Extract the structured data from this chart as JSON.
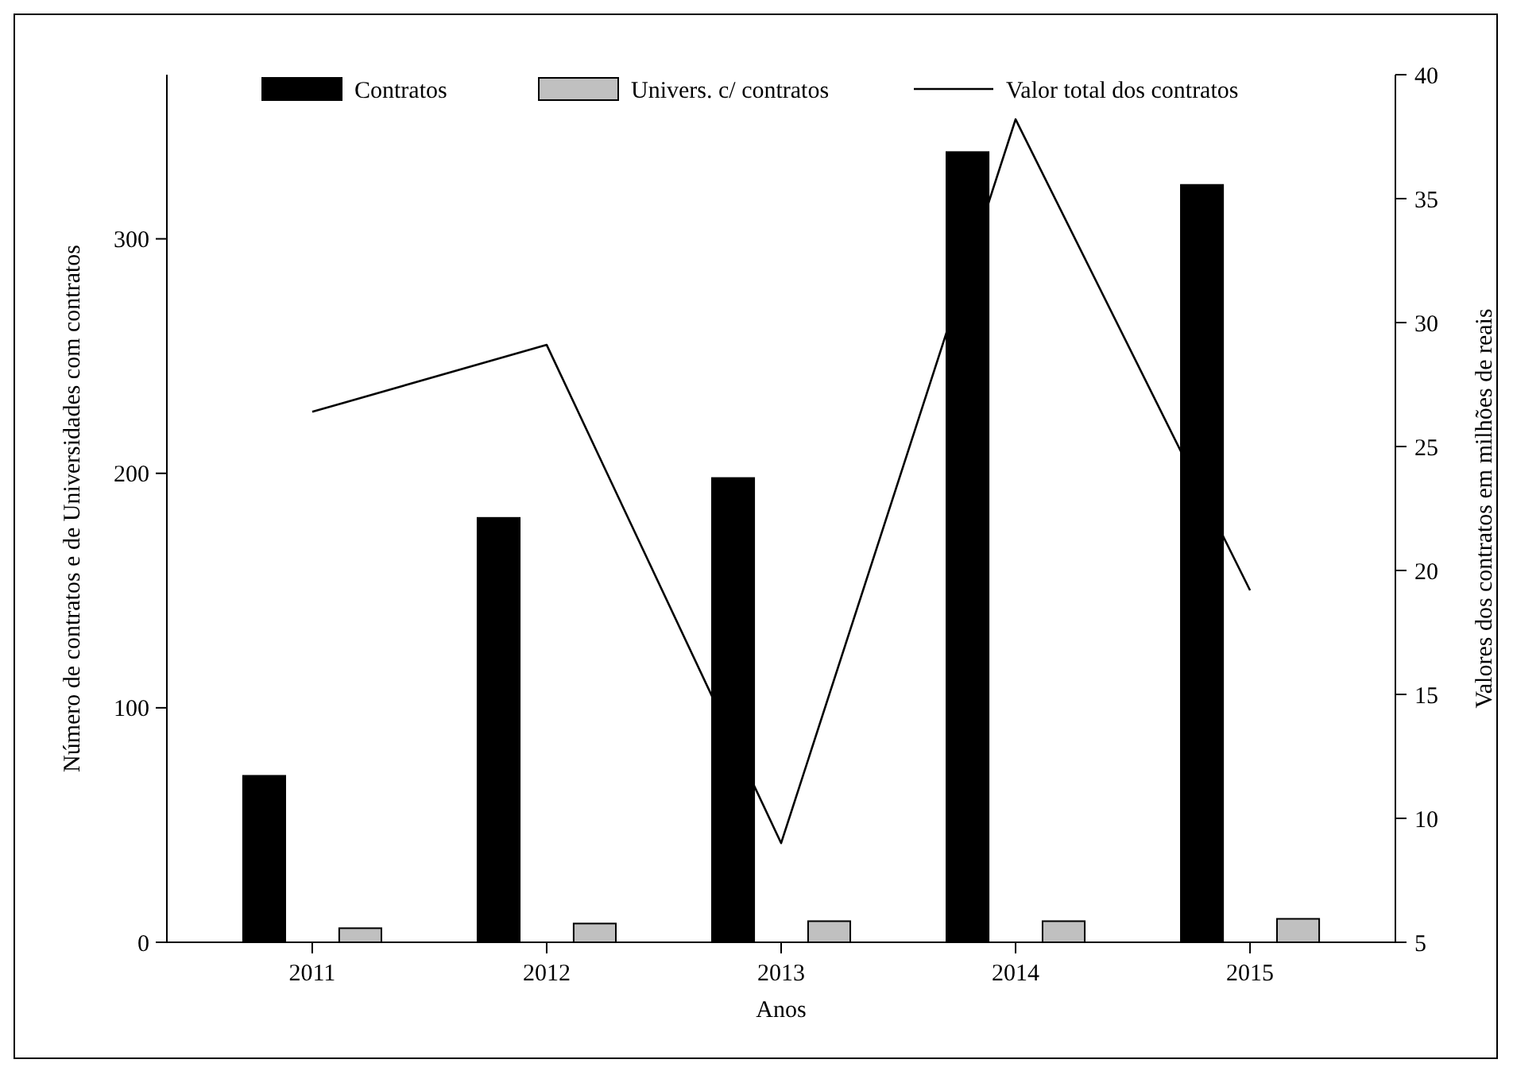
{
  "chart_data": {
    "type": "bar",
    "xlabel": "Anos",
    "ylabel": "Número de contratos e de Universidades com contratos",
    "y2label": "Valores dos contratos em milhões de reais",
    "categories": [
      "2011",
      "2012",
      "2013",
      "2014",
      "2015"
    ],
    "series": [
      {
        "name": "Contratos",
        "color": "#000000",
        "values": [
          71,
          181,
          198,
          337,
          323
        ]
      },
      {
        "name": "Univers. c/ contratos",
        "color": "#c0c0c0",
        "values": [
          6,
          8,
          9,
          9,
          10
        ]
      },
      {
        "name": "Valor total dos contratos",
        "type": "line",
        "axis": "y2",
        "color": "#000000",
        "values": [
          26.4,
          29.1,
          9.0,
          38.2,
          19.2
        ]
      }
    ],
    "ylim": [
      0,
      370
    ],
    "yticks": [
      0,
      100,
      200,
      300
    ],
    "y2lim": [
      5,
      40
    ],
    "y2ticks": [
      5,
      10,
      15,
      20,
      25,
      30,
      35,
      40
    ],
    "grid": false,
    "legend": "top",
    "marker": "none",
    "line_style": "solid"
  }
}
